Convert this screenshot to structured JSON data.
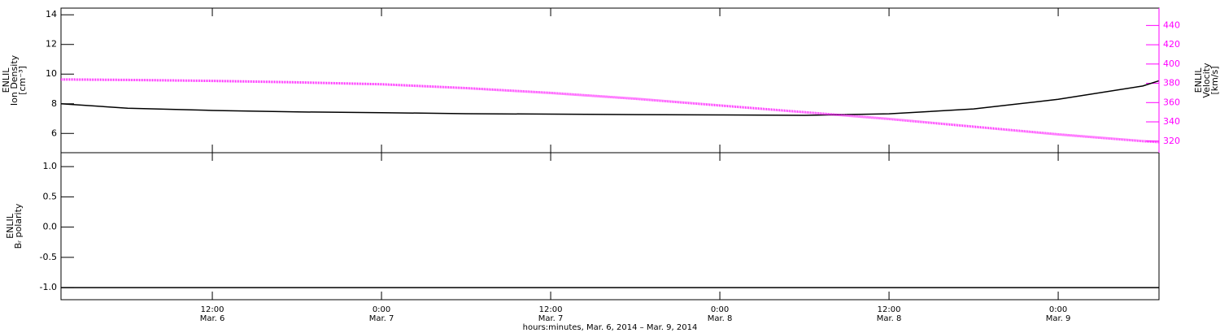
{
  "chart_data": [
    {
      "type": "line",
      "ylabel": [
        "ENLIL",
        "Ion Density",
        "[cm⁻³]"
      ],
      "y2label": [
        "ENLIL",
        "Velocity",
        "[km/s]"
      ],
      "x": [
        "2014-03-06T01:16",
        "2014-03-06T06:00",
        "2014-03-06T12:00",
        "2014-03-06T18:00",
        "2014-03-07T00:00",
        "2014-03-07T06:00",
        "2014-03-07T12:00",
        "2014-03-07T18:00",
        "2014-03-08T00:00",
        "2014-03-08T06:00",
        "2014-03-08T12:00",
        "2014-03-08T18:00",
        "2014-03-09T00:00",
        "2014-03-09T06:00",
        "2014-03-09T07:09"
      ],
      "series": [
        {
          "color": "#000000",
          "values": [
            8.0,
            7.7,
            7.55,
            7.45,
            7.4,
            7.33,
            7.3,
            7.27,
            7.25,
            7.22,
            7.32,
            7.65,
            8.3,
            9.2,
            9.55
          ]
        },
        {
          "color": "#ff00ff",
          "axis": "y2",
          "values": [
            384,
            383.5,
            382.5,
            381,
            379,
            375,
            370,
            364,
            357,
            350,
            343,
            335,
            327,
            320,
            319
          ]
        }
      ],
      "xlim": [
        "2014-03-06T01:16",
        "2014-03-09T07:09"
      ],
      "ylim": [
        4.7,
        14.45
      ],
      "yticks": [
        6,
        8,
        10,
        12,
        14
      ],
      "y2lim": [
        308,
        458
      ],
      "y2ticks": [
        320,
        340,
        360,
        380,
        400,
        420,
        440
      ]
    },
    {
      "type": "line",
      "ylabel": [
        "ENLIL",
        "Bᵣ polarity"
      ],
      "xlabel": "hours:minutes, Mar.  6, 2014 – Mar.  9, 2014",
      "x": [
        "2014-03-06T01:16",
        "2014-03-06T06:00",
        "2014-03-06T12:00",
        "2014-03-06T18:00",
        "2014-03-07T00:00",
        "2014-03-07T06:00",
        "2014-03-07T12:00",
        "2014-03-07T18:00",
        "2014-03-08T00:00",
        "2014-03-08T06:00",
        "2014-03-08T12:00",
        "2014-03-08T18:00",
        "2014-03-09T00:00",
        "2014-03-09T06:00",
        "2014-03-09T07:09"
      ],
      "series": [
        {
          "color": "#000000",
          "values": [
            -1,
            -1,
            -1,
            -1,
            -1,
            -1,
            -1,
            -1,
            -1,
            -1,
            -1,
            -1,
            -1,
            -1,
            -1
          ]
        }
      ],
      "xlim": [
        "2014-03-06T01:16",
        "2014-03-09T07:09"
      ],
      "xticks": [
        {
          "value": "2014-03-06T12:00",
          "label": [
            "12:00",
            "Mar. 6"
          ]
        },
        {
          "value": "2014-03-07T00:00",
          "label": [
            "0:00",
            "Mar. 7"
          ]
        },
        {
          "value": "2014-03-07T12:00",
          "label": [
            "12:00",
            "Mar. 7"
          ]
        },
        {
          "value": "2014-03-08T00:00",
          "label": [
            "0:00",
            "Mar. 8"
          ]
        },
        {
          "value": "2014-03-08T12:00",
          "label": [
            "12:00",
            "Mar. 8"
          ]
        },
        {
          "value": "2014-03-09T00:00",
          "label": [
            "0:00",
            "Mar. 9"
          ]
        }
      ],
      "ylim": [
        -1.2,
        1.23
      ],
      "yticks": [
        1.0,
        0.5,
        0.0,
        -0.5,
        -1.0
      ]
    }
  ]
}
